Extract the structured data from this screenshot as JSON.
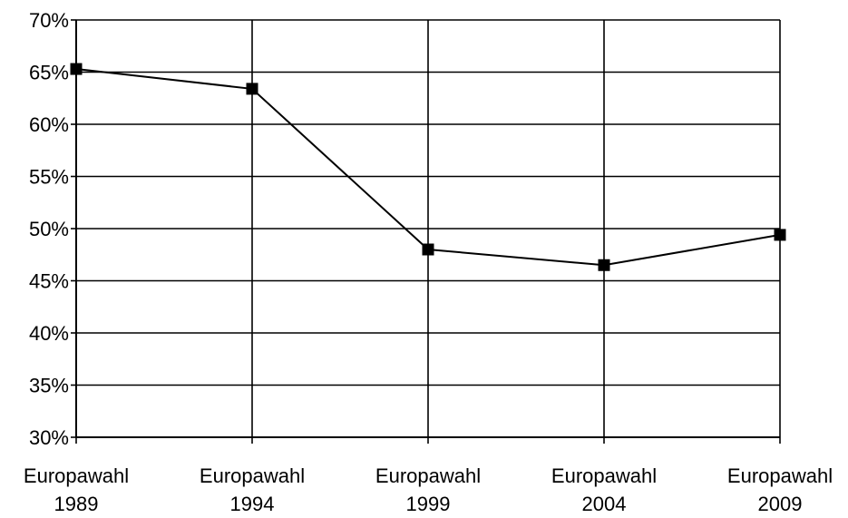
{
  "chart_data": {
    "type": "line",
    "title": "",
    "xlabel": "",
    "ylabel": "",
    "categories": [
      [
        "Europawahl",
        "1989"
      ],
      [
        "Europawahl",
        "1994"
      ],
      [
        "Europawahl",
        "1999"
      ],
      [
        "Europawahl",
        "2004"
      ],
      [
        "Europawahl",
        "2009"
      ]
    ],
    "series": [
      {
        "values": [
          65.3,
          63.4,
          48.0,
          46.5,
          49.4
        ],
        "color": "#000000",
        "marker": "square"
      }
    ],
    "ylim": [
      30,
      70
    ],
    "yticks": [
      30,
      35,
      40,
      45,
      50,
      55,
      60,
      65,
      70
    ],
    "ytick_labels": [
      "30%",
      "35%",
      "40%",
      "45%",
      "50%",
      "55%",
      "60%",
      "65%",
      "70%"
    ],
    "grid": {
      "horizontal": true,
      "vertical": true
    },
    "legend": "none"
  }
}
